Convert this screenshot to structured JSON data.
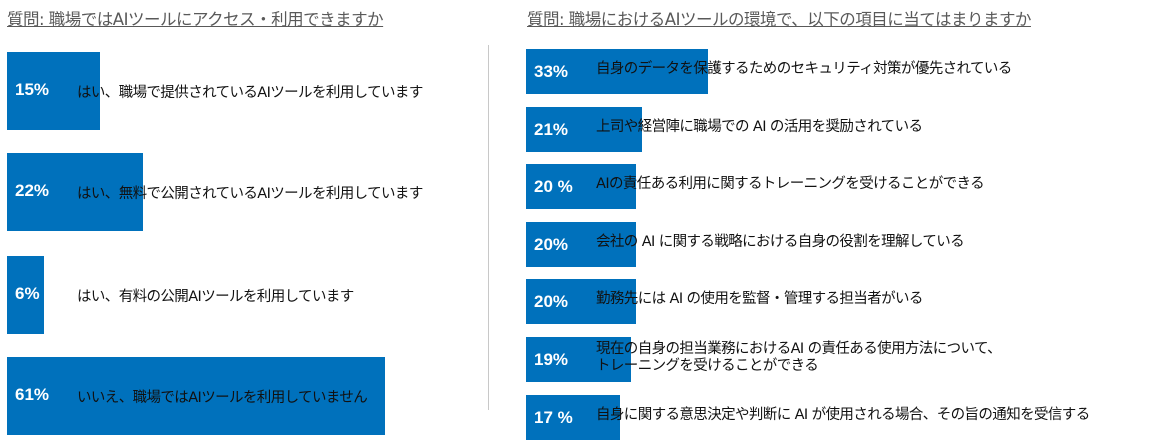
{
  "chart_data": [
    {
      "type": "bar",
      "orientation": "horizontal",
      "title": "質問: 職場ではAIツールにアクセス・利用できますか",
      "categories": [
        "はい、職場で提供されているAIツールを利用しています",
        "はい、無料で公開されているAIツールを利用しています",
        "はい、有料の公開AIツールを利用しています",
        "いいえ、職場ではAIツールを利用していません"
      ],
      "values": [
        15,
        22,
        6,
        61
      ],
      "value_labels": [
        "15%",
        "22%",
        "6%",
        "61%"
      ],
      "unit": "%",
      "color": "#0071bc"
    },
    {
      "type": "bar",
      "orientation": "horizontal",
      "title": "質問: 職場におけるAIツールの環境で、以下の項目に当てはまりますか",
      "categories": [
        "自身のデータを保護するためのセキュリティ対策が優先されている",
        "上司や経営陣に職場での AI の活用を奨励されている",
        "AIの責任ある利用に関するトレーニングを受けることができる",
        "会社の AI に関する戦略における自身の役割を理解している",
        "勤務先には AI の使用を監督・管理する担当者がいる",
        "現在の自身の担当業務におけるAI の責任ある使用方法について、\nトレーニングを受けることができる",
        "自身に関する意思決定や判断に AI が使用される場合、その旨の通知を受信する"
      ],
      "values": [
        33,
        21,
        20,
        20,
        20,
        19,
        17
      ],
      "value_labels": [
        "33%",
        "21%",
        "20 %",
        "20%",
        "20%",
        "19%",
        "17 %"
      ],
      "unit": "%",
      "color": "#0071bc"
    }
  ]
}
